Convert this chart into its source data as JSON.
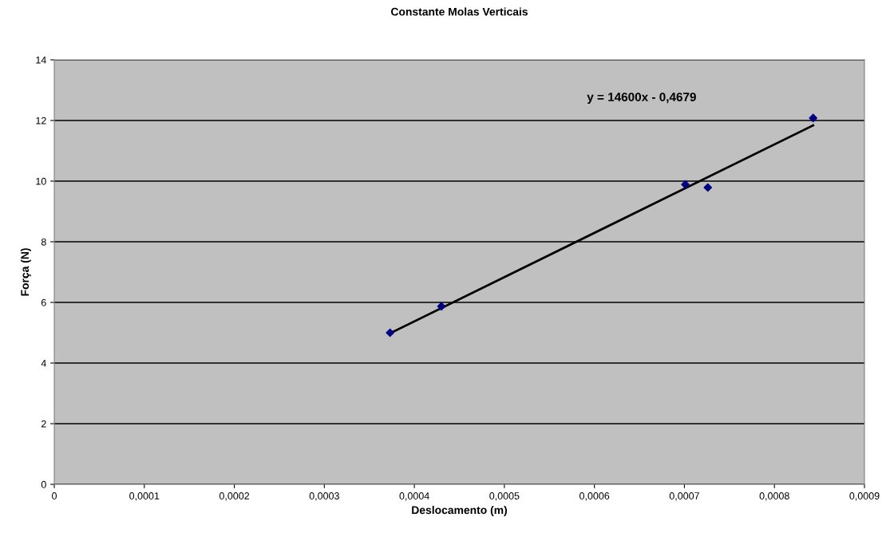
{
  "chart_data": {
    "type": "scatter",
    "title": "Constante Molas Verticais",
    "xlabel": "Deslocamento (m)",
    "ylabel": "Força (N)",
    "series": [
      {
        "color": "#000080",
        "marker": "diamond",
        "x": [
          0.000373,
          0.00043,
          0.000701,
          0.000726,
          0.000843
        ],
        "values": [
          5.0,
          5.87,
          9.89,
          9.79,
          12.08
        ]
      },
      {
        "type": "line",
        "color": "#000000",
        "marker": "none",
        "line_style": "solid",
        "x": [
          0.000373,
          0.000843
        ],
        "values": [
          4.98,
          11.84
        ]
      }
    ],
    "annotations": [
      "y = 14600x - 0,4679"
    ],
    "xlim": [
      0,
      0.0009
    ],
    "ylim": [
      0,
      14
    ],
    "xticks": [
      0,
      {
        "value": 0.0001,
        "label": "0,0001"
      },
      {
        "value": 0.0002,
        "label": "0,0002"
      },
      {
        "value": 0.0003,
        "label": "0,0003"
      },
      {
        "value": 0.0004,
        "label": "0,0004"
      },
      {
        "value": 0.0005,
        "label": "0,0005"
      },
      {
        "value": 0.0006,
        "label": "0,0006"
      },
      {
        "value": 0.0007,
        "label": "0,0007"
      },
      {
        "value": 0.0008,
        "label": "0,0008"
      },
      {
        "value": 0.0009,
        "label": "0,0009"
      }
    ],
    "yticks": [
      0,
      2,
      4,
      6,
      8,
      10,
      12,
      14
    ],
    "grid": "y",
    "legend": false
  }
}
